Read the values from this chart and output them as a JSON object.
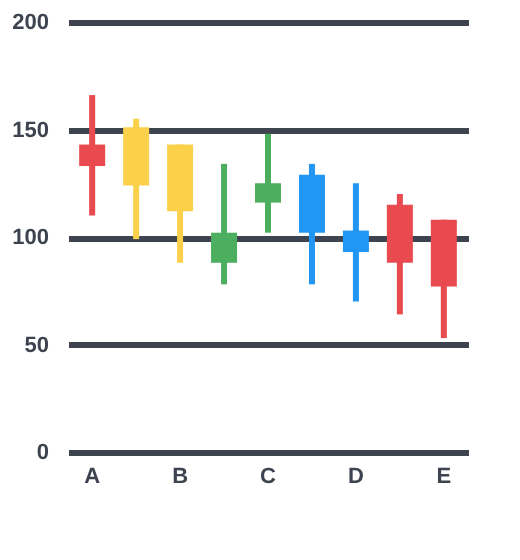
{
  "chart_data": {
    "type": "candlestick",
    "categories": [
      "A",
      null,
      "B",
      null,
      "C",
      null,
      "D",
      null,
      "E"
    ],
    "ohlc": [
      [
        143,
        166,
        110,
        133
      ],
      [
        151,
        155,
        99,
        124
      ],
      [
        143,
        143,
        88,
        112
      ],
      [
        102,
        134,
        78,
        88
      ],
      [
        125,
        148,
        102,
        116
      ],
      [
        129,
        134,
        78,
        102
      ],
      [
        103,
        125,
        70,
        93
      ],
      [
        115,
        120,
        64,
        88
      ],
      [
        108,
        108,
        53,
        77
      ]
    ],
    "colors": [
      "#e84a4f",
      "#fbd04a",
      "#fbd04a",
      "#4caf60",
      "#4caf60",
      "#2196f3",
      "#2196f3",
      "#e84a4f",
      "#e84a4f"
    ],
    "ylim": [
      0,
      200
    ],
    "yticks": [
      0,
      50,
      100,
      150,
      200
    ],
    "grid": "y",
    "legend": false
  }
}
